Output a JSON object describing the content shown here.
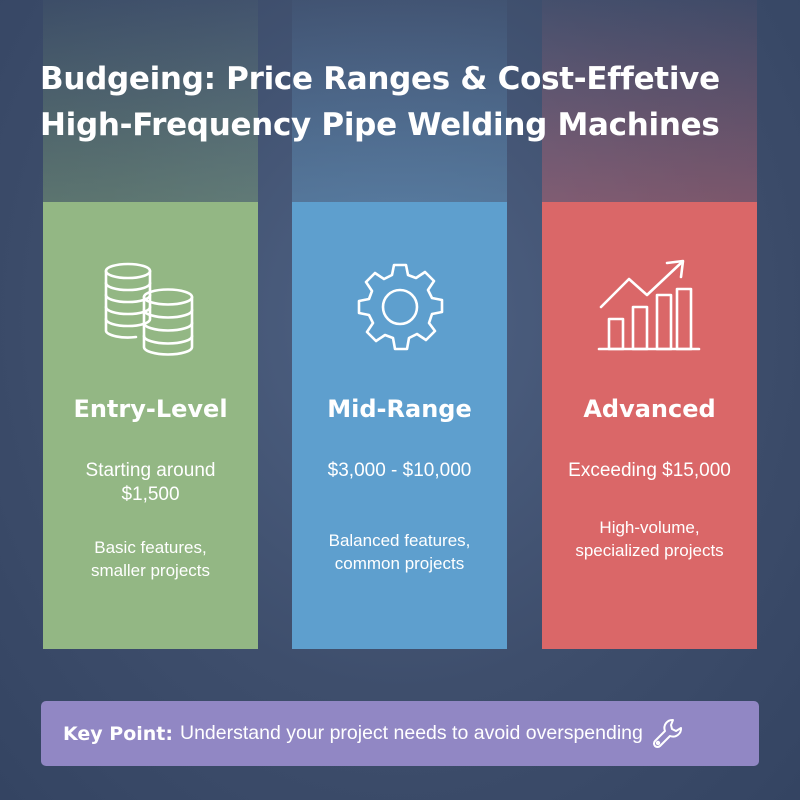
{
  "title": {
    "line1": "Budgeing: Price Ranges & Cost-Effetive",
    "line2": "High-Frequency Pipe Welding Machines"
  },
  "colors": {
    "entry": "#93b784",
    "mid": "#5e9fce",
    "advanced": "#da6768",
    "keypoint": "#9187c4",
    "background": "#3e4e6c"
  },
  "tiers": [
    {
      "icon": "coin-stack-icon",
      "name": "Entry-Level",
      "price": "Starting around $1,500",
      "description": "Basic features, smaller projects"
    },
    {
      "icon": "gear-icon",
      "name": "Mid-Range",
      "price": "$3,000 - $10,000",
      "description": "Balanced features, common projects"
    },
    {
      "icon": "growth-chart-icon",
      "name": "Advanced",
      "price": "Exceeding $15,000",
      "description": "High-volume, specialized projects"
    }
  ],
  "key_point": {
    "label": "Key Point:",
    "text": "Understand your project needs to avoid overspending",
    "icon": "wrench-icon"
  }
}
